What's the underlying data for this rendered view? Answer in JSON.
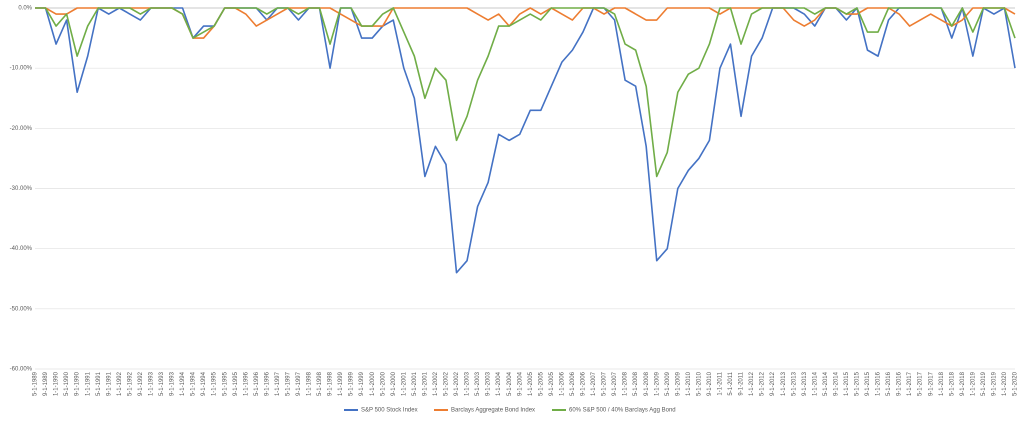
{
  "chart_data": {
    "type": "line",
    "categories": [
      "5-1-1989",
      "9-1-1989",
      "1-1-1990",
      "5-1-1990",
      "9-1-1990",
      "1-1-1991",
      "5-1-1991",
      "9-1-1991",
      "1-1-1992",
      "5-1-1992",
      "9-1-1992",
      "1-1-1993",
      "5-1-1993",
      "9-1-1993",
      "1-1-1994",
      "5-1-1994",
      "9-1-1994",
      "1-1-1995",
      "5-1-1995",
      "9-1-1995",
      "1-1-1996",
      "5-1-1996",
      "9-1-1996",
      "1-1-1997",
      "5-1-1997",
      "9-1-1997",
      "1-1-1998",
      "5-1-1998",
      "9-1-1998",
      "1-1-1999",
      "5-1-1999",
      "9-1-1999",
      "1-1-2000",
      "5-1-2000",
      "9-1-2000",
      "1-1-2001",
      "5-1-2001",
      "9-1-2001",
      "1-1-2002",
      "5-1-2002",
      "9-1-2002",
      "1-1-2003",
      "5-1-2003",
      "9-1-2003",
      "1-1-2004",
      "5-1-2004",
      "9-1-2004",
      "1-1-2005",
      "5-1-2005",
      "9-1-2005",
      "1-1-2006",
      "5-1-2006",
      "9-1-2006",
      "1-1-2007",
      "5-1-2007",
      "9-1-2007",
      "1-1-2008",
      "5-1-2008",
      "9-1-2008",
      "1-1-2009",
      "5-1-2009",
      "9-1-2009",
      "1-1-2010",
      "5-1-2010",
      "9-1-2010",
      "1-1-2011",
      "5-1-2011",
      "9-1-2011",
      "1-1-2012",
      "5-1-2012",
      "9-1-2012",
      "1-1-2013",
      "5-1-2013",
      "9-1-2013",
      "1-1-2014",
      "5-1-2014",
      "9-1-2014",
      "1-1-2015",
      "5-1-2015",
      "9-1-2015",
      "1-1-2016",
      "5-1-2016",
      "9-1-2016",
      "1-1-2017",
      "5-1-2017",
      "9-1-2017",
      "1-1-2018",
      "5-1-2018",
      "9-1-2018",
      "1-1-2019",
      "5-1-2019",
      "9-1-2019",
      "1-1-2020",
      "5-1-2020"
    ],
    "series": [
      {
        "name": "S&P 500 Stock Index",
        "color": "#4472c4",
        "values": [
          0,
          0,
          -6,
          -2,
          -14,
          -8,
          0,
          -1,
          0,
          -1,
          -2,
          0,
          0,
          0,
          0,
          -5,
          -3,
          -3,
          0,
          0,
          0,
          0,
          -2,
          0,
          0,
          -2,
          0,
          0,
          -10,
          0,
          0,
          -5,
          -5,
          -3,
          -2,
          -10,
          -15,
          -28,
          -23,
          -26,
          -44,
          -42,
          -33,
          -29,
          -21,
          -22,
          -21,
          -17,
          -17,
          -13,
          -9,
          -7,
          -4,
          0,
          0,
          -2,
          -12,
          -13,
          -23,
          -42,
          -40,
          -30,
          -27,
          -25,
          -22,
          -10,
          -6,
          -18,
          -8,
          -5,
          0,
          0,
          0,
          -1,
          -3,
          0,
          0,
          -2,
          0,
          -7,
          -8,
          -2,
          0,
          0,
          0,
          0,
          0,
          -5,
          0,
          -8,
          0,
          -1,
          0,
          -10
        ]
      },
      {
        "name": "Barclays Aggregate Bond Index",
        "color": "#ed7d31",
        "values": [
          0,
          0,
          -1,
          -1,
          0,
          0,
          0,
          0,
          0,
          0,
          0,
          0,
          0,
          0,
          -1,
          -5,
          -5,
          -3,
          0,
          0,
          -1,
          -3,
          -2,
          -1,
          0,
          0,
          0,
          0,
          0,
          -1,
          -2,
          -3,
          -3,
          -3,
          0,
          0,
          0,
          0,
          0,
          0,
          0,
          0,
          -1,
          -2,
          -1,
          -3,
          -1,
          0,
          -1,
          0,
          -1,
          -2,
          0,
          0,
          -1,
          0,
          0,
          -1,
          -2,
          -2,
          0,
          0,
          0,
          0,
          0,
          -1,
          0,
          0,
          0,
          0,
          0,
          0,
          -2,
          -3,
          -2,
          0,
          0,
          -1,
          -1,
          0,
          0,
          0,
          -1,
          -3,
          -2,
          -1,
          -2,
          -3,
          -2,
          0,
          0,
          0,
          0,
          -1
        ]
      },
      {
        "name": "60% S&P 500 / 40% Barclays Agg Bond",
        "color": "#70ad47",
        "values": [
          0,
          0,
          -3,
          -1,
          -8,
          -3,
          0,
          0,
          0,
          0,
          -1,
          0,
          0,
          0,
          -1,
          -5,
          -4,
          -3,
          0,
          0,
          0,
          0,
          -1,
          0,
          0,
          -1,
          0,
          0,
          -6,
          0,
          0,
          -3,
          -3,
          -1,
          0,
          -4,
          -8,
          -15,
          -10,
          -12,
          -22,
          -18,
          -12,
          -8,
          -3,
          -3,
          -2,
          -1,
          -2,
          0,
          0,
          0,
          0,
          0,
          0,
          -1,
          -6,
          -7,
          -13,
          -28,
          -24,
          -14,
          -11,
          -10,
          -6,
          0,
          0,
          -6,
          -1,
          0,
          0,
          0,
          0,
          0,
          -1,
          0,
          0,
          -1,
          0,
          -4,
          -4,
          0,
          0,
          0,
          0,
          0,
          0,
          -3,
          0,
          -4,
          0,
          0,
          0,
          -5
        ]
      }
    ],
    "ylim": [
      -60,
      0
    ],
    "yticks": [
      {
        "value": 0,
        "label": "0.0%"
      },
      {
        "value": -10,
        "label": "-10.00%"
      },
      {
        "value": -20,
        "label": "-20.00%"
      },
      {
        "value": -30,
        "label": "-30.00%"
      },
      {
        "value": -40,
        "label": "-40.00%"
      },
      {
        "value": -50,
        "label": "-50.00%"
      },
      {
        "value": -60,
        "label": "-60.00%"
      }
    ],
    "grid": true,
    "legend": "bottom"
  }
}
